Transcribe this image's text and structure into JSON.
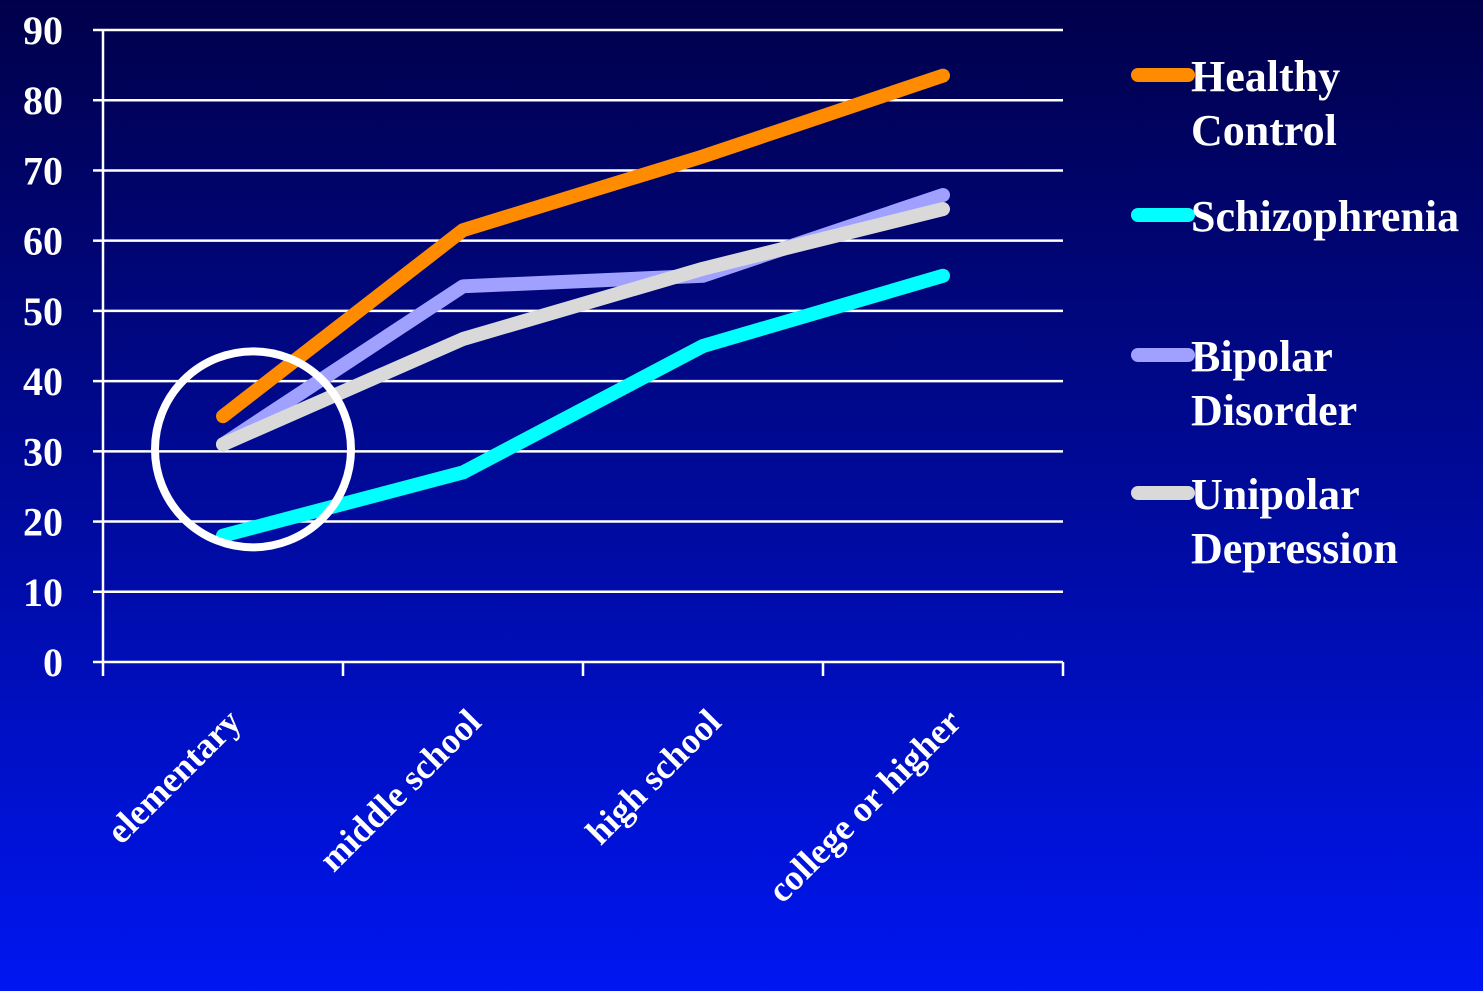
{
  "chart_data": {
    "type": "line",
    "categories": [
      "elementary",
      "middle school",
      "high school",
      "college or higher"
    ],
    "ylim": [
      0,
      90
    ],
    "yticks": [
      0,
      10,
      20,
      30,
      40,
      50,
      60,
      70,
      80,
      90
    ],
    "grid": true,
    "legend_position": "right",
    "series": [
      {
        "name": "Healthy Control",
        "name_lines": [
          "Healthy",
          "Control"
        ],
        "color": "#ff8c00",
        "values": [
          35,
          61.5,
          72,
          83.5
        ]
      },
      {
        "name": "Schizophrenia",
        "name_lines": [
          "Schizophrenia"
        ],
        "color": "#00ffff",
        "values": [
          18,
          27,
          45,
          55
        ]
      },
      {
        "name": "Bipolar Disorder",
        "name_lines": [
          "Bipolar",
          "Disorder"
        ],
        "color": "#a0a0ff",
        "values": [
          31,
          53.5,
          55,
          66.5
        ]
      },
      {
        "name": "Unipolar Depression",
        "name_lines": [
          "Unipolar",
          "Depression"
        ],
        "color": "#d9d9d9",
        "values": [
          31,
          46,
          56,
          64.5
        ]
      }
    ],
    "annotation": {
      "type": "circle",
      "color": "#ffffff",
      "category_index": 0,
      "value": 30
    }
  }
}
